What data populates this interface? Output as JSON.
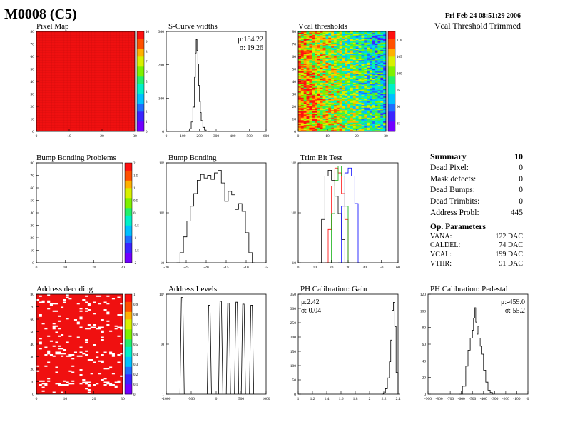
{
  "page": {
    "title": "M0008 (C5)",
    "date": "Fri Feb 24 08:51:29 2006",
    "subtitle": "Vcal Threshold Trimmed"
  },
  "colors": {
    "frame": "#000000",
    "map_red": "#f01010",
    "palette": [
      "#7200ff",
      "#3a24ff",
      "#1f6eff",
      "#00c0ff",
      "#00f0c8",
      "#22f06a",
      "#7ef000",
      "#d8f000",
      "#ffb000",
      "#ff5000",
      "#ff1010"
    ]
  },
  "chart_data": [
    {
      "id": "pixel_map",
      "type": "heatmap",
      "title": "Pixel Map",
      "xlim": [
        0,
        32
      ],
      "ylim": [
        0,
        80
      ],
      "xticks": [
        "0",
        "10",
        "20",
        "30"
      ],
      "yticks": [
        "0",
        "10",
        "20",
        "30",
        "40",
        "50",
        "60",
        "70",
        "80"
      ],
      "zticks": [
        "0",
        "1",
        "2",
        "3",
        "4",
        "5",
        "6",
        "7",
        "8",
        "9",
        "10"
      ],
      "fill": "uniform",
      "value": 10
    },
    {
      "id": "scurve_widths",
      "type": "line",
      "title": "S-Curve widths",
      "xlim": [
        0,
        600
      ],
      "ylim": [
        0,
        370
      ],
      "xticks": [
        "0",
        "100",
        "200",
        "300",
        "400",
        "500",
        "600"
      ],
      "yticks": [
        "0",
        "100",
        "200",
        "300"
      ],
      "stats": [
        "μ:184.22",
        "σ: 19.26"
      ],
      "x": [
        120,
        130,
        140,
        150,
        160,
        170,
        175,
        180,
        185,
        190,
        195,
        200,
        205,
        210,
        220,
        230,
        240,
        250
      ],
      "y": [
        0,
        2,
        10,
        35,
        90,
        200,
        290,
        340,
        300,
        250,
        170,
        110,
        70,
        40,
        15,
        5,
        1,
        0
      ]
    },
    {
      "id": "vcal_thresholds",
      "type": "heatmap",
      "title": "Vcal thresholds",
      "xlim": [
        0,
        32
      ],
      "ylim": [
        0,
        80
      ],
      "xticks": [
        "0",
        "10",
        "20",
        "30"
      ],
      "yticks": [
        "0",
        "10",
        "20",
        "30",
        "40",
        "50",
        "60",
        "70",
        "80"
      ],
      "zticks": [
        "85",
        "90",
        "95",
        "100",
        "105",
        "110"
      ],
      "fill": "noise",
      "zrange": [
        82,
        115
      ]
    },
    {
      "id": "bump_bonding_problems",
      "type": "heatmap",
      "title": "Bump Bonding Problems",
      "xlim": [
        0,
        32
      ],
      "ylim": [
        0,
        80
      ],
      "xticks": [
        "0",
        "10",
        "20",
        "30"
      ],
      "yticks": [
        "0",
        "10",
        "20",
        "30",
        "40",
        "50",
        "60",
        "70",
        "80"
      ],
      "zticks": [
        "-2",
        "-1.5",
        "-1",
        "-0.5",
        "0",
        "0.5",
        "1",
        "1.5",
        "2"
      ],
      "fill": "empty"
    },
    {
      "id": "bump_bonding",
      "type": "line",
      "title": "Bump Bonding",
      "scale": "log",
      "xlim": [
        -32,
        -3
      ],
      "ylim": [
        1,
        1000
      ],
      "xticks": [
        "-30",
        "-25",
        "-20",
        "-15",
        "-10",
        "-5"
      ],
      "yticks": [
        "10",
        "10²",
        "10³"
      ],
      "x": [
        -29,
        -28,
        -27,
        -26,
        -25,
        -24,
        -23,
        -22,
        -21,
        -20,
        -19,
        -18,
        -17,
        -16,
        -15,
        -14,
        -13,
        -12,
        -11,
        -10,
        -9,
        -8,
        -7
      ],
      "y": [
        1,
        2,
        6,
        18,
        50,
        120,
        300,
        450,
        350,
        420,
        320,
        500,
        600,
        250,
        70,
        140,
        110,
        40,
        60,
        35,
        8,
        2,
        1
      ]
    },
    {
      "id": "trim_bit_test",
      "type": "line",
      "title": "Trim Bit Test",
      "scale": "log",
      "xlim": [
        0,
        60
      ],
      "ylim": [
        1,
        1000
      ],
      "xticks": [
        "0",
        "10",
        "20",
        "30",
        "40",
        "50",
        "60"
      ],
      "yticks": [
        "10",
        "10²",
        "10³"
      ],
      "series": [
        {
          "color": "#000000",
          "x": [
            12,
            14,
            16,
            18,
            20,
            22,
            24,
            26,
            28
          ],
          "y": [
            1,
            20,
            400,
            600,
            300,
            100,
            30,
            5,
            1
          ]
        },
        {
          "color": "#ff0000",
          "x": [
            16,
            18,
            20,
            22,
            24,
            26,
            28,
            30
          ],
          "y": [
            1,
            10,
            200,
            700,
            500,
            120,
            20,
            1
          ]
        },
        {
          "color": "#00aa00",
          "x": [
            18,
            20,
            22,
            24,
            26,
            28,
            30
          ],
          "y": [
            1,
            30,
            300,
            800,
            400,
            50,
            1
          ]
        },
        {
          "color": "#0000ff",
          "x": [
            24,
            26,
            28,
            30,
            32,
            34,
            36
          ],
          "y": [
            1,
            50,
            500,
            700,
            400,
            60,
            1
          ]
        }
      ]
    },
    {
      "id": "address_decoding",
      "type": "heatmap",
      "title": "Address decoding",
      "xlim": [
        0,
        32
      ],
      "ylim": [
        0,
        80
      ],
      "xticks": [
        "0",
        "10",
        "20",
        "30"
      ],
      "yticks": [
        "0",
        "10",
        "20",
        "30",
        "40",
        "50",
        "60",
        "70",
        "80"
      ],
      "zticks": [
        "0",
        "0.1",
        "0.2",
        "0.3",
        "0.4",
        "0.5",
        "0.6",
        "0.7",
        "0.8",
        "0.9",
        "1"
      ],
      "fill": "defects"
    },
    {
      "id": "address_levels",
      "type": "line",
      "title": "Address Levels",
      "scale": "log",
      "xlim": [
        -1200,
        1000
      ],
      "ylim": [
        1,
        300
      ],
      "xticks": [
        "-1000",
        "-500",
        "0",
        "500",
        "1000"
      ],
      "yticks": [
        "1",
        "10",
        "10²"
      ],
      "peaks_x": [
        -850,
        -250,
        0,
        170,
        350,
        500,
        680
      ],
      "peaks_y": [
        250,
        160,
        200,
        180,
        190,
        170,
        160
      ]
    },
    {
      "id": "ph_gain",
      "type": "line",
      "title": "PH Calibration: Gain",
      "xlim": [
        1,
        2.5
      ],
      "ylim": [
        0,
        370
      ],
      "xticks": [
        "1",
        "1.2",
        "1.4",
        "1.6",
        "1.8",
        "2",
        "2.2",
        "2.4"
      ],
      "yticks": [
        "0",
        "50",
        "100",
        "150",
        "200",
        "250",
        "300",
        "350"
      ],
      "stats": [
        "μ:2.42",
        "σ: 0.04"
      ],
      "x": [
        2.25,
        2.28,
        2.31,
        2.34,
        2.37,
        2.39,
        2.41,
        2.43,
        2.45,
        2.47,
        2.5
      ],
      "y": [
        0,
        5,
        20,
        60,
        120,
        200,
        310,
        340,
        250,
        80,
        0
      ]
    },
    {
      "id": "ph_pedestal",
      "type": "line",
      "title": "PH Calibration: Pedestal",
      "xlim": [
        -900,
        0
      ],
      "ylim": [
        0,
        125
      ],
      "xticks": [
        "-900",
        "-800",
        "-700",
        "-600",
        "-500",
        "-400",
        "-300",
        "-200",
        "-100",
        "0"
      ],
      "yticks": [
        "0",
        "20",
        "40",
        "60",
        "80",
        "100",
        "120"
      ],
      "stats": [
        "μ:-459.0",
        "σ: 55.2"
      ],
      "x": [
        -620,
        -590,
        -560,
        -540,
        -520,
        -500,
        -490,
        -480,
        -470,
        -460,
        -450,
        -440,
        -430,
        -420,
        -400,
        -380,
        -360,
        -340,
        -320
      ],
      "y": [
        0,
        10,
        35,
        55,
        70,
        80,
        95,
        108,
        90,
        75,
        85,
        70,
        60,
        50,
        30,
        15,
        5,
        2,
        0
      ]
    }
  ],
  "summary": {
    "heading": "Summary",
    "heading_value": "10",
    "rows": [
      {
        "label": "Dead Pixel:",
        "value": "0"
      },
      {
        "label": "Mask defects:",
        "value": "0"
      },
      {
        "label": "Dead Bumps:",
        "value": "0"
      },
      {
        "label": "Dead Trimbits:",
        "value": "0"
      },
      {
        "label": "Address Probl:",
        "value": "445"
      }
    ],
    "op_heading": "Op. Parameters",
    "op_rows": [
      {
        "label": "VANA:",
        "value": "122 DAC"
      },
      {
        "label": "CALDEL:",
        "value": "74 DAC"
      },
      {
        "label": "VCAL:",
        "value": "199 DAC"
      },
      {
        "label": "VTHR:",
        "value": "91 DAC"
      }
    ]
  }
}
